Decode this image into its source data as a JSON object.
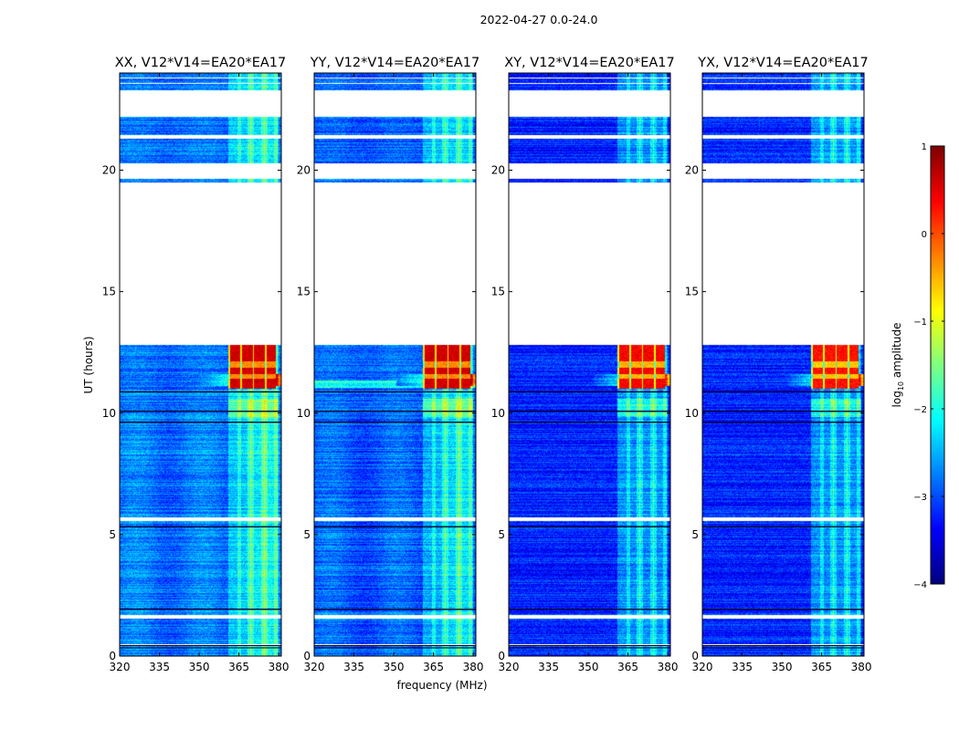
{
  "figure_title": "2022-04-27 0.0-24.0",
  "chart_data": {
    "type": "heatmap",
    "shared": {
      "xlabel": "frequency (MHz)",
      "ylabel": "UT (hours)",
      "xlim": [
        320,
        381
      ],
      "ylim": [
        0,
        24
      ],
      "xticks": [
        320,
        335,
        350,
        365,
        380
      ],
      "yticks": [
        0,
        5,
        10,
        15,
        20
      ],
      "colorbar": {
        "label": "log10 amplitude",
        "label_base": "log",
        "label_sub": "10",
        "label_rest": " amplitude",
        "range": [
          -4,
          1
        ],
        "ticks": [
          1,
          0,
          -1,
          -2,
          -3,
          -4
        ],
        "tick_labels": [
          "1",
          "0",
          "−1",
          "−2",
          "−3",
          "−4"
        ],
        "colormap": "jet"
      },
      "missing_ut_ranges": [
        [
          12.8,
          19.5
        ],
        [
          19.65,
          20.3
        ],
        [
          21.3,
          21.45
        ],
        [
          22.2,
          23.3
        ],
        [
          23.55,
          23.6
        ],
        [
          23.78,
          23.82
        ],
        [
          5.55,
          5.7
        ],
        [
          1.55,
          1.7
        ],
        [
          0.4,
          0.47
        ]
      ],
      "rfi_channels_mhz": [
        365,
        369,
        370,
        374,
        375,
        379
      ],
      "flare_ut_range": [
        11.0,
        12.8
      ],
      "flare_freq_range_mhz": [
        361,
        379
      ]
    },
    "panels": [
      {
        "title": "XX, V12*V14=EA20*EA17",
        "polarization": "XX",
        "background_level": -2.8,
        "flare_level": 0.6
      },
      {
        "title": "YY, V12*V14=EA20*EA17",
        "polarization": "YY",
        "background_level": -2.9,
        "flare_level": 0.6
      },
      {
        "title": "XY, V12*V14=EA20*EA17",
        "polarization": "XY",
        "background_level": -3.2,
        "flare_level": 0.4
      },
      {
        "title": "YX, V12*V14=EA20*EA17",
        "polarization": "YX",
        "background_level": -3.2,
        "flare_level": 0.3
      }
    ]
  }
}
